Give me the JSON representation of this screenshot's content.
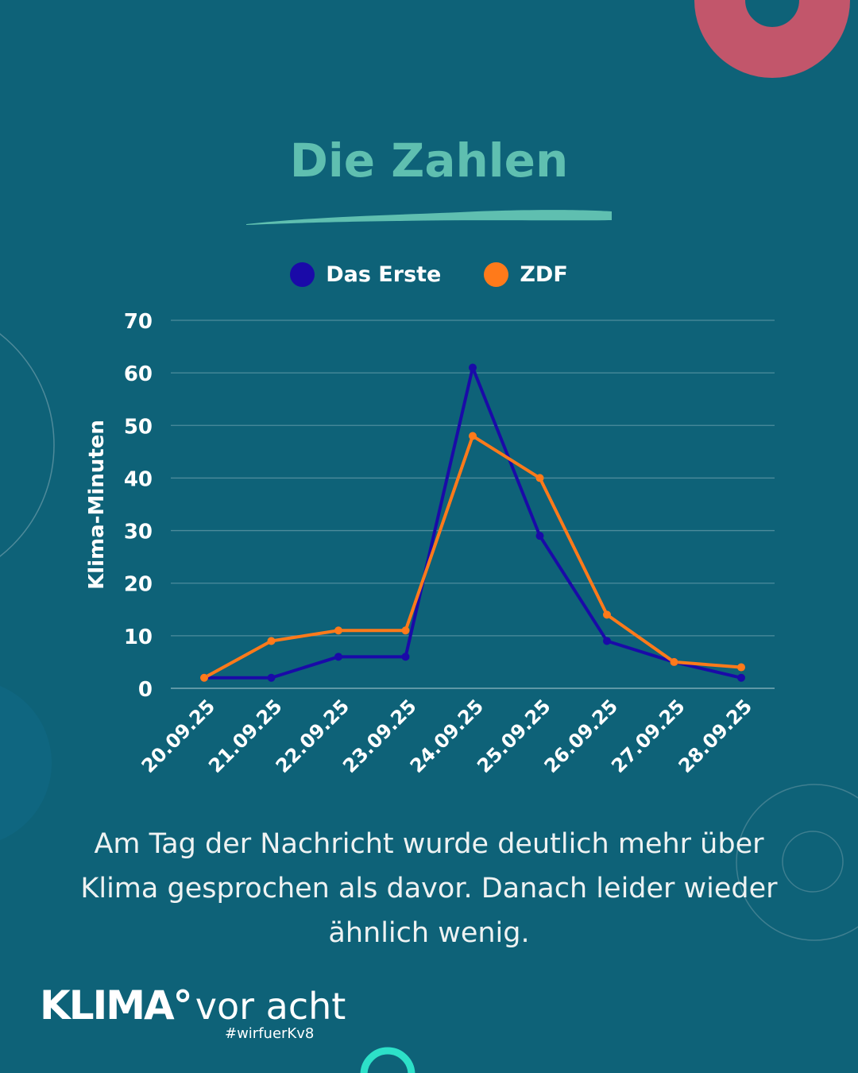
{
  "title": "Die Zahlen",
  "caption": "Am Tag der Nachricht wurde deutlich mehr über Klima gesprochen als davor. Danach leider wieder ähnlich wenig.",
  "logo": {
    "brand": "KLIMA°",
    "tagline": "vor acht",
    "hashtag": "#wirfuerKv8"
  },
  "colors": {
    "background": "#0e6278",
    "title": "#5fbfb0",
    "das_erste": "#1a0aa8",
    "zdf": "#ff7a1a",
    "accent_ring": "#c2566b",
    "teal_ring": "#2de0c8"
  },
  "chart_data": {
    "type": "line",
    "categories": [
      "20.09.25",
      "21.09.25",
      "22.09.25",
      "23.09.25",
      "24.09.25",
      "25.09.25",
      "26.09.25",
      "27.09.25",
      "28.09.25"
    ],
    "series": [
      {
        "name": "Das Erste",
        "color": "#1a0aa8",
        "values": [
          2,
          2,
          6,
          6,
          61,
          29,
          9,
          5,
          2
        ]
      },
      {
        "name": "ZDF",
        "color": "#ff7a1a",
        "values": [
          2,
          9,
          11,
          11,
          48,
          40,
          14,
          5,
          4
        ]
      }
    ],
    "xlabel": "",
    "ylabel": "Klima-Minuten",
    "ylim": [
      0,
      70
    ],
    "yticks": [
      "0",
      "10",
      "20",
      "30",
      "40",
      "50",
      "60",
      "70"
    ],
    "grid": true,
    "legend": "top-center"
  }
}
